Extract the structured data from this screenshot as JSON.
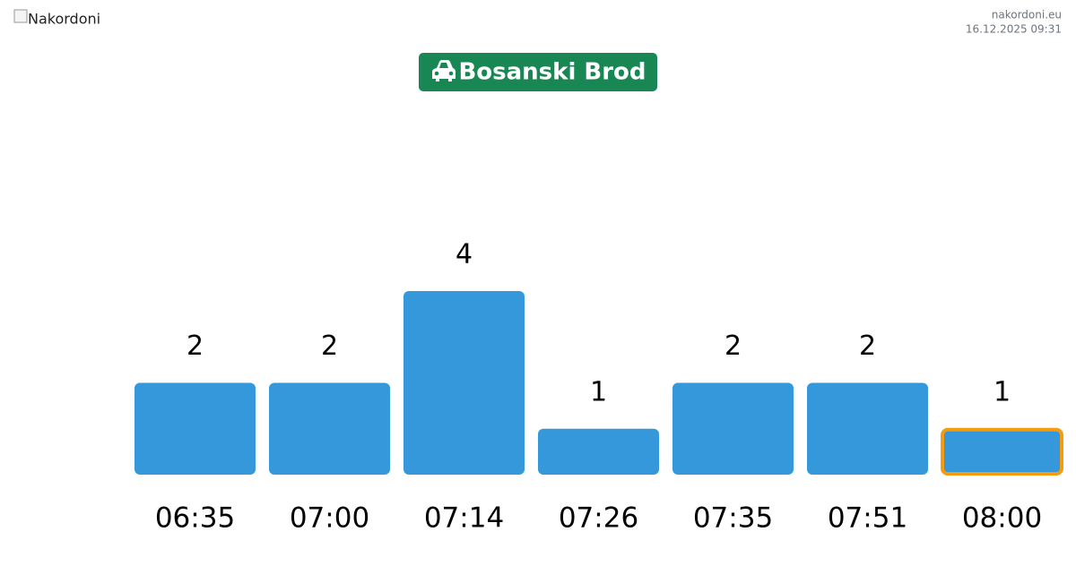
{
  "header": {
    "logo_alt": "Nakordoni",
    "site": "nakordoni.eu",
    "timestamp": "16.12.2025 09:31"
  },
  "chart_data": {
    "type": "bar",
    "title": "Bosanski Brod",
    "title_color": "#198754",
    "categories": [
      "06:35",
      "07:00",
      "07:14",
      "07:26",
      "07:35",
      "07:51",
      "08:00"
    ],
    "values": [
      2,
      2,
      4,
      1,
      2,
      2,
      1
    ],
    "color": "#3498db",
    "highlight": "last",
    "highlight_color": "#f39c12"
  }
}
